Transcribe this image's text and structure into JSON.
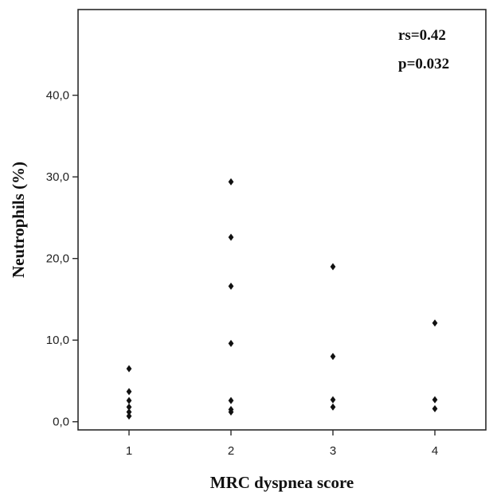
{
  "chart_data": {
    "type": "scatter",
    "xlabel": "MRC dyspnea score",
    "ylabel": "Neutrophils (%)",
    "xlim": [
      0.5,
      4.5
    ],
    "ylim": [
      -1,
      50.5
    ],
    "x_ticks": [
      1,
      2,
      3,
      4
    ],
    "x_tick_labels": [
      "1",
      "2",
      "3",
      "4"
    ],
    "y_ticks": [
      0,
      10,
      20,
      30,
      40
    ],
    "y_tick_labels": [
      "0,0",
      "10,0",
      "20,0",
      "30,0",
      "40,0"
    ],
    "grid": false,
    "annotations": [
      "rs=0.42",
      "p=0.032"
    ],
    "points": [
      {
        "x": 1,
        "y": 6.5
      },
      {
        "x": 1,
        "y": 3.7
      },
      {
        "x": 1,
        "y": 2.6
      },
      {
        "x": 1,
        "y": 1.8
      },
      {
        "x": 1,
        "y": 1.2
      },
      {
        "x": 1,
        "y": 0.7
      },
      {
        "x": 2,
        "y": 29.4
      },
      {
        "x": 2,
        "y": 22.6
      },
      {
        "x": 2,
        "y": 16.6
      },
      {
        "x": 2,
        "y": 9.6
      },
      {
        "x": 2,
        "y": 2.6
      },
      {
        "x": 2,
        "y": 1.5
      },
      {
        "x": 2,
        "y": 1.2
      },
      {
        "x": 3,
        "y": 19.0
      },
      {
        "x": 3,
        "y": 8.0
      },
      {
        "x": 3,
        "y": 2.7
      },
      {
        "x": 3,
        "y": 1.8
      },
      {
        "x": 4,
        "y": 12.1
      },
      {
        "x": 4,
        "y": 2.7
      },
      {
        "x": 4,
        "y": 1.6
      }
    ]
  }
}
